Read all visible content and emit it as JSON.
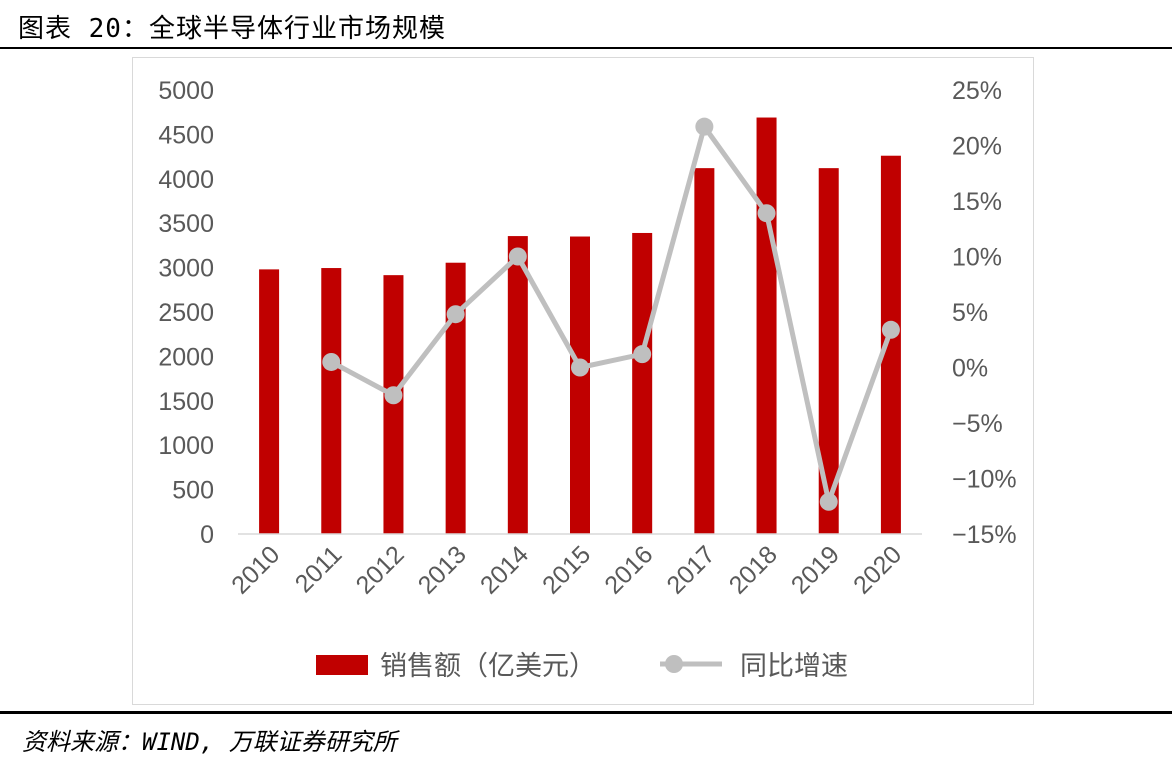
{
  "header": {
    "title": "图表 20：全球半导体行业市场规模"
  },
  "footer": {
    "source": "资料来源：WIND, 万联证券研究所"
  },
  "chart_data": {
    "type": "bar",
    "categories": [
      "2010",
      "2011",
      "2012",
      "2013",
      "2014",
      "2015",
      "2016",
      "2017",
      "2018",
      "2019",
      "2020"
    ],
    "series": [
      {
        "name": "销售额（亿美元）",
        "type": "bar",
        "axis": "left",
        "color": "#c00000",
        "values": [
          2980,
          2995,
          2915,
          3055,
          3355,
          3350,
          3390,
          4120,
          4690,
          4120,
          4260
        ]
      },
      {
        "name": "同比增速",
        "type": "line",
        "axis": "right",
        "color": "#bfbfbf",
        "values": [
          null,
          0.5,
          -2.5,
          4.8,
          10.0,
          0.0,
          1.2,
          21.7,
          13.9,
          -12.1,
          3.4
        ]
      }
    ],
    "y_left": {
      "min": 0,
      "max": 5000,
      "ticks": [
        "0",
        "500",
        "1000",
        "1500",
        "2000",
        "2500",
        "3000",
        "3500",
        "4000",
        "4500",
        "5000"
      ]
    },
    "y_right": {
      "min": -15,
      "max": 25,
      "ticks": [
        "−15%",
        "−10%",
        "−5%",
        "0%",
        "5%",
        "10%",
        "15%",
        "20%",
        "25%"
      ]
    },
    "grid": false,
    "legend": "bottom"
  }
}
